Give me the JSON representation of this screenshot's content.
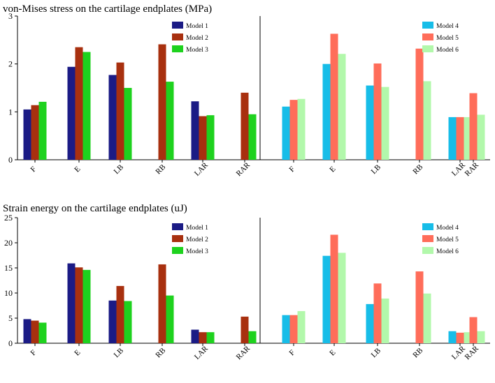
{
  "colors": {
    "Model 1": "#1b1b85",
    "Model 2": "#a8300f",
    "Model 3": "#1ed21e",
    "Model 4": "#17bde8",
    "Model 5": "#ff6d5a",
    "Model 6": "#b2f8ab"
  },
  "chart_data": [
    {
      "type": "bar",
      "title": "von-Mises stress on the cartilage endplates (MPa)",
      "categories": [
        "F",
        "E",
        "LB",
        "RB",
        "LAR",
        "RAR"
      ],
      "ylim": [
        0,
        3
      ],
      "yticks": [
        0,
        1,
        2,
        3
      ],
      "left_panel": {
        "series": [
          {
            "name": "Model 1",
            "values": [
              1.05,
              1.94,
              1.77,
              null,
              1.22,
              null
            ]
          },
          {
            "name": "Model 2",
            "values": [
              1.14,
              2.35,
              2.03,
              2.41,
              0.91,
              1.4
            ]
          },
          {
            "name": "Model 3",
            "values": [
              1.21,
              2.25,
              1.5,
              1.63,
              0.93,
              0.95
            ]
          }
        ]
      },
      "right_panel": {
        "series": [
          {
            "name": "Model 4",
            "values": [
              1.11,
              2.0,
              1.55,
              null,
              0.89,
              null
            ]
          },
          {
            "name": "Model 5",
            "values": [
              1.25,
              2.63,
              2.01,
              2.32,
              0.89,
              1.39
            ]
          },
          {
            "name": "Model 6",
            "values": [
              1.27,
              2.21,
              1.52,
              1.64,
              0.89,
              0.94
            ]
          }
        ]
      }
    },
    {
      "type": "bar",
      "title": "Strain energy on the cartilage endplates (uJ)",
      "categories": [
        "F",
        "E",
        "LB",
        "RB",
        "LAR",
        "RAR"
      ],
      "ylim": [
        0,
        25
      ],
      "yticks": [
        0,
        5,
        10,
        15,
        20,
        25
      ],
      "left_panel": {
        "series": [
          {
            "name": "Model 1",
            "values": [
              4.8,
              15.9,
              8.5,
              null,
              2.7,
              null
            ]
          },
          {
            "name": "Model 2",
            "values": [
              4.5,
              15.1,
              11.4,
              15.7,
              2.2,
              5.3
            ]
          },
          {
            "name": "Model 3",
            "values": [
              4.1,
              14.6,
              8.4,
              9.5,
              2.2,
              2.4
            ]
          }
        ]
      },
      "right_panel": {
        "series": [
          {
            "name": "Model 4",
            "values": [
              5.6,
              17.4,
              7.8,
              null,
              2.4,
              null
            ]
          },
          {
            "name": "Model 5",
            "values": [
              5.6,
              21.6,
              11.9,
              14.3,
              2.1,
              5.2
            ]
          },
          {
            "name": "Model 6",
            "values": [
              6.4,
              18.0,
              8.9,
              9.9,
              2.2,
              2.4
            ]
          }
        ]
      }
    }
  ]
}
